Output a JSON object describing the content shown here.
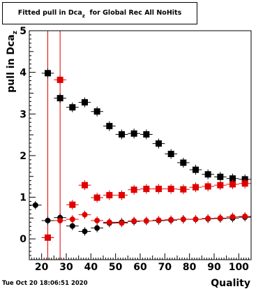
{
  "title": {
    "main": "Fitted pull in Dca",
    "subscript": "z",
    "suffix": "for Global Rec All NoHits"
  },
  "timestamp": "Tue Oct 20 18:06:51 2020",
  "chart_data": {
    "type": "scatter",
    "title": "Fitted pull in Dca_z for Global Rec All NoHits",
    "xlabel": "Quality",
    "ylabel": "pull in Dca_z",
    "xlim": [
      15,
      105
    ],
    "ylim": [
      -0.5,
      5
    ],
    "xticks": [
      20,
      30,
      40,
      50,
      60,
      70,
      80,
      90,
      100
    ],
    "yticks": [
      0,
      1,
      2,
      3,
      4,
      5
    ],
    "vertical_lines": [
      22.5,
      27.5
    ],
    "vertical_line_color": "#e00000",
    "grid": false,
    "series": [
      {
        "marker": "square",
        "color": "#000000",
        "points": [
          [
            22.5,
            3.98
          ],
          [
            27.5,
            3.38
          ],
          [
            32.5,
            3.16
          ],
          [
            37.5,
            3.28
          ],
          [
            42.5,
            3.06
          ],
          [
            47.5,
            2.71
          ],
          [
            52.5,
            2.51
          ],
          [
            57.5,
            2.53
          ],
          [
            62.5,
            2.51
          ],
          [
            67.5,
            2.29
          ],
          [
            72.5,
            2.04
          ],
          [
            77.5,
            1.83
          ],
          [
            82.5,
            1.66
          ],
          [
            87.5,
            1.55
          ],
          [
            92.5,
            1.49
          ],
          [
            97.5,
            1.45
          ],
          [
            102.5,
            1.43
          ]
        ]
      },
      {
        "marker": "square",
        "color": "#e00000",
        "points": [
          [
            22.5,
            0.03
          ],
          [
            27.5,
            3.82
          ],
          [
            32.5,
            0.82
          ],
          [
            37.5,
            1.29
          ],
          [
            42.5,
            0.99
          ],
          [
            47.5,
            1.05
          ],
          [
            52.5,
            1.05
          ],
          [
            57.5,
            1.18
          ],
          [
            62.5,
            1.2
          ],
          [
            67.5,
            1.2
          ],
          [
            72.5,
            1.2
          ],
          [
            77.5,
            1.19
          ],
          [
            82.5,
            1.24
          ],
          [
            87.5,
            1.26
          ],
          [
            92.5,
            1.29
          ],
          [
            97.5,
            1.31
          ],
          [
            102.5,
            1.33
          ]
        ]
      },
      {
        "marker": "circle",
        "color": "#000000",
        "points": [
          [
            17.5,
            0.81
          ],
          [
            22.5,
            0.44
          ],
          [
            27.5,
            0.51
          ],
          [
            32.5,
            0.31
          ],
          [
            37.5,
            0.18
          ],
          [
            42.5,
            0.26
          ],
          [
            47.5,
            0.38
          ],
          [
            52.5,
            0.4
          ],
          [
            57.5,
            0.42
          ],
          [
            62.5,
            0.43
          ],
          [
            67.5,
            0.44
          ],
          [
            72.5,
            0.45
          ],
          [
            77.5,
            0.47
          ],
          [
            82.5,
            0.47
          ],
          [
            87.5,
            0.48
          ],
          [
            92.5,
            0.49
          ],
          [
            97.5,
            0.5
          ],
          [
            102.5,
            0.52
          ]
        ]
      },
      {
        "marker": "circle",
        "color": "#e00000",
        "points": [
          [
            22.5,
            0.03
          ],
          [
            27.5,
            0.44
          ],
          [
            32.5,
            0.47
          ],
          [
            37.5,
            0.58
          ],
          [
            42.5,
            0.44
          ],
          [
            47.5,
            0.4
          ],
          [
            52.5,
            0.38
          ],
          [
            57.5,
            0.43
          ],
          [
            62.5,
            0.43
          ],
          [
            67.5,
            0.45
          ],
          [
            72.5,
            0.46
          ],
          [
            77.5,
            0.47
          ],
          [
            82.5,
            0.47
          ],
          [
            87.5,
            0.49
          ],
          [
            92.5,
            0.5
          ],
          [
            97.5,
            0.53
          ],
          [
            102.5,
            0.54
          ]
        ]
      }
    ]
  }
}
